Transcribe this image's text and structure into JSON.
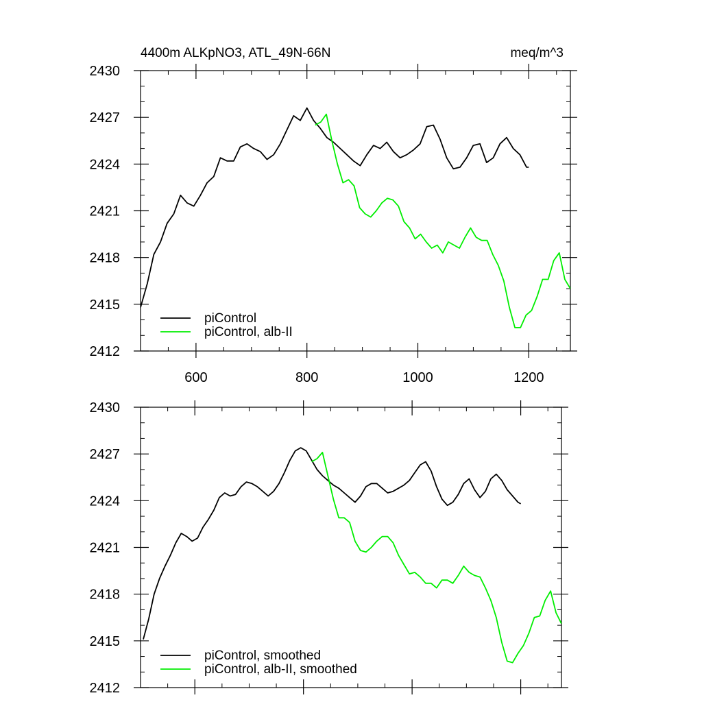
{
  "chart_data": [
    {
      "type": "line",
      "title": "4400m ALKpNO3, ATL_49N-66N",
      "units": "meq/m^3",
      "xlabel": "",
      "ylabel": "",
      "xlim": [
        500,
        1275
      ],
      "ylim": [
        2412,
        2430
      ],
      "x_ticks": [
        600,
        800,
        1000,
        1200
      ],
      "y_ticks": [
        2412,
        2415,
        2418,
        2421,
        2424,
        2427,
        2430
      ],
      "x_tick_labels": [
        "600",
        "800",
        "1000",
        "1200"
      ],
      "y_tick_labels": [
        "2412",
        "2415",
        "2418",
        "2421",
        "2424",
        "2427",
        "2430"
      ],
      "legend_position": "bottom-left",
      "series": [
        {
          "name": "piControl",
          "color": "#000000",
          "x": [
            500,
            512,
            524,
            536,
            548,
            560,
            572,
            584,
            596,
            608,
            620,
            632,
            644,
            656,
            668,
            680,
            692,
            704,
            716,
            728,
            740,
            752,
            764,
            776,
            788,
            800,
            812,
            824,
            836,
            848,
            860,
            872,
            884,
            896,
            908,
            920,
            932,
            944,
            956,
            968,
            980,
            992,
            1004,
            1016,
            1028,
            1040,
            1052,
            1064,
            1076,
            1088,
            1100,
            1112,
            1124,
            1136,
            1148,
            1160,
            1172,
            1184,
            1196,
            1200
          ],
          "y": [
            2414.8,
            2416.3,
            2418.2,
            2419.0,
            2420.2,
            2420.8,
            2422.0,
            2421.5,
            2421.3,
            2422.0,
            2422.8,
            2423.2,
            2424.4,
            2424.2,
            2424.2,
            2425.1,
            2425.3,
            2425.0,
            2424.8,
            2424.3,
            2424.6,
            2425.3,
            2426.2,
            2427.1,
            2426.8,
            2427.6,
            2426.8,
            2426.3,
            2425.7,
            2425.4,
            2425.0,
            2424.6,
            2424.2,
            2423.9,
            2424.6,
            2425.2,
            2425.0,
            2425.4,
            2424.8,
            2424.4,
            2424.6,
            2424.9,
            2425.3,
            2426.4,
            2426.5,
            2425.6,
            2424.4,
            2423.7,
            2423.8,
            2424.4,
            2425.2,
            2425.3,
            2424.1,
            2424.4,
            2425.3,
            2425.7,
            2425.0,
            2424.6,
            2423.8,
            2423.8
          ]
        },
        {
          "name": "piControl, alb-II",
          "color": "#00ee00",
          "x": [
            815,
            825,
            835,
            845,
            855,
            865,
            875,
            885,
            895,
            905,
            915,
            925,
            935,
            945,
            955,
            965,
            975,
            985,
            995,
            1005,
            1015,
            1025,
            1035,
            1045,
            1055,
            1065,
            1075,
            1085,
            1095,
            1105,
            1115,
            1125,
            1135,
            1145,
            1155,
            1165,
            1175,
            1185,
            1195,
            1205,
            1215,
            1225,
            1235,
            1245,
            1255,
            1265,
            1275
          ],
          "y": [
            2426.5,
            2426.7,
            2427.2,
            2425.5,
            2424.0,
            2422.8,
            2423.0,
            2422.6,
            2421.2,
            2420.8,
            2420.6,
            2421.0,
            2421.5,
            2421.8,
            2421.7,
            2421.3,
            2420.3,
            2419.9,
            2419.2,
            2419.5,
            2419.0,
            2418.6,
            2418.8,
            2418.3,
            2419.0,
            2418.8,
            2418.6,
            2419.3,
            2419.9,
            2419.3,
            2419.1,
            2419.1,
            2418.2,
            2417.5,
            2416.5,
            2414.8,
            2413.5,
            2413.5,
            2414.3,
            2414.6,
            2415.5,
            2416.6,
            2416.6,
            2417.8,
            2418.3,
            2416.6,
            2416.0
          ]
        }
      ]
    },
    {
      "type": "line",
      "title": "",
      "xlabel": "",
      "ylabel": "",
      "xlim": [
        500,
        1275
      ],
      "ylim": [
        2412,
        2430
      ],
      "x_ticks": [
        600,
        800,
        1000,
        1200
      ],
      "y_ticks": [
        2412,
        2415,
        2418,
        2421,
        2424,
        2427,
        2430
      ],
      "y_tick_labels": [
        "2412",
        "2415",
        "2418",
        "2421",
        "2424",
        "2427",
        "2430"
      ],
      "legend_position": "bottom-left",
      "series": [
        {
          "name": "piControl, smoothed",
          "color": "#000000",
          "x": [
            505,
            515,
            525,
            535,
            545,
            555,
            565,
            575,
            585,
            595,
            605,
            615,
            625,
            635,
            645,
            655,
            665,
            675,
            685,
            695,
            705,
            715,
            725,
            735,
            745,
            755,
            765,
            775,
            785,
            795,
            805,
            815,
            825,
            835,
            845,
            855,
            865,
            875,
            885,
            895,
            905,
            915,
            925,
            935,
            945,
            955,
            965,
            975,
            985,
            995,
            1005,
            1015,
            1025,
            1035,
            1045,
            1055,
            1065,
            1075,
            1085,
            1095,
            1105,
            1115,
            1125,
            1135,
            1145,
            1155,
            1165,
            1175,
            1185,
            1195,
            1200
          ],
          "y": [
            2415.1,
            2416.4,
            2418.0,
            2419.0,
            2419.8,
            2420.5,
            2421.3,
            2421.9,
            2421.7,
            2421.4,
            2421.6,
            2422.3,
            2422.8,
            2423.4,
            2424.2,
            2424.5,
            2424.3,
            2424.4,
            2424.9,
            2425.2,
            2425.1,
            2424.9,
            2424.6,
            2424.3,
            2424.6,
            2425.1,
            2425.8,
            2426.6,
            2427.2,
            2427.4,
            2427.2,
            2426.6,
            2426.0,
            2425.6,
            2425.3,
            2425.0,
            2424.8,
            2424.5,
            2424.2,
            2423.9,
            2424.3,
            2424.9,
            2425.1,
            2425.1,
            2424.8,
            2424.5,
            2424.6,
            2424.8,
            2425.0,
            2425.3,
            2425.8,
            2426.3,
            2426.5,
            2425.9,
            2424.9,
            2424.1,
            2423.7,
            2423.9,
            2424.4,
            2425.1,
            2425.4,
            2424.7,
            2424.2,
            2424.6,
            2425.4,
            2425.7,
            2425.3,
            2424.7,
            2424.3,
            2423.9,
            2423.8
          ]
        },
        {
          "name": "piControl, alb-II, smoothed",
          "color": "#00ee00",
          "x": [
            815,
            825,
            835,
            845,
            855,
            865,
            875,
            885,
            895,
            905,
            915,
            925,
            935,
            945,
            955,
            965,
            975,
            985,
            995,
            1005,
            1015,
            1025,
            1035,
            1045,
            1055,
            1065,
            1075,
            1085,
            1095,
            1105,
            1115,
            1125,
            1135,
            1145,
            1155,
            1165,
            1175,
            1185,
            1195,
            1205,
            1215,
            1225,
            1235,
            1245,
            1255,
            1265,
            1275
          ],
          "y": [
            2426.5,
            2426.7,
            2427.1,
            2425.6,
            2424.1,
            2422.9,
            2422.9,
            2422.6,
            2421.4,
            2420.8,
            2420.7,
            2421.0,
            2421.4,
            2421.7,
            2421.7,
            2421.3,
            2420.5,
            2419.9,
            2419.3,
            2419.4,
            2419.1,
            2418.7,
            2418.7,
            2418.4,
            2418.9,
            2418.9,
            2418.7,
            2419.2,
            2419.8,
            2419.4,
            2419.2,
            2419.1,
            2418.4,
            2417.6,
            2416.5,
            2414.9,
            2413.7,
            2413.6,
            2414.2,
            2414.7,
            2415.5,
            2416.5,
            2416.6,
            2417.6,
            2418.2,
            2416.8,
            2416.1
          ]
        }
      ]
    }
  ]
}
